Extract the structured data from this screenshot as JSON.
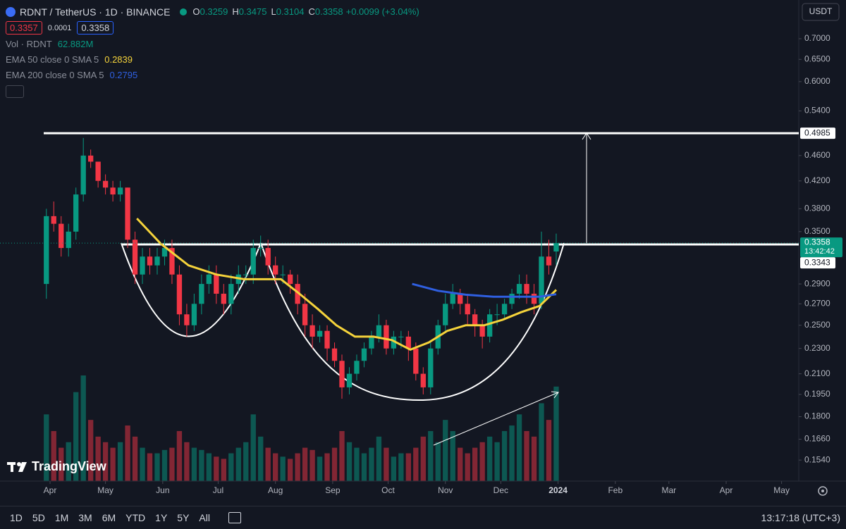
{
  "header": {
    "symbol": "RDNT / TetherUS · 1D · BINANCE",
    "ohlc": [
      {
        "key": "O",
        "value": 0.3259
      },
      {
        "key": "H",
        "value": 0.3475
      },
      {
        "key": "L",
        "value": 0.3104
      },
      {
        "key": "C",
        "value": 0.3358
      }
    ],
    "change": "+0.0099 (+3.04%)",
    "sell": 0.3357,
    "spread": 0.0001,
    "buy": 0.3358
  },
  "currency": "USDT",
  "watermark": "TradingView",
  "toolbar": {
    "ranges": [
      "1D",
      "5D",
      "1M",
      "3M",
      "6M",
      "YTD",
      "1Y",
      "5Y",
      "All"
    ],
    "clock": "13:17:18 (UTC+3)"
  },
  "chart_data": {
    "type": "candlestick",
    "log_scale": true,
    "grid": false,
    "up_color": "#089981",
    "down_color": "#f23645",
    "xlim": [
      -27.1,
      405.3
    ],
    "xticks": [
      {
        "value": 0,
        "label": "Apr"
      },
      {
        "value": 30,
        "label": "May"
      },
      {
        "value": 61,
        "label": "Jun"
      },
      {
        "value": 91,
        "label": "Jul"
      },
      {
        "value": 122,
        "label": "Aug"
      },
      {
        "value": 153,
        "label": "Sep"
      },
      {
        "value": 183,
        "label": "Oct"
      },
      {
        "value": 214,
        "label": "Nov"
      },
      {
        "value": 244,
        "label": "Dec"
      },
      {
        "value": 275,
        "label": "2024"
      },
      {
        "value": 306,
        "label": "Feb"
      },
      {
        "value": 335,
        "label": "Mar"
      },
      {
        "value": 366,
        "label": "Apr"
      },
      {
        "value": 396,
        "label": "May"
      }
    ],
    "ylim": [
      0.1428,
      0.8045
    ],
    "yticks": [
      {
        "value": 0.7,
        "label": "0.7000"
      },
      {
        "value": 0.65,
        "label": "0.6500"
      },
      {
        "value": 0.6,
        "label": "0.6000"
      },
      {
        "value": 0.54,
        "label": "0.5400"
      },
      {
        "value": 0.46,
        "label": "0.4600"
      },
      {
        "value": 0.42,
        "label": "0.4200"
      },
      {
        "value": 0.38,
        "label": "0.3800"
      },
      {
        "value": 0.35,
        "label": "0.3500"
      },
      {
        "value": 0.29,
        "label": "0.2900"
      },
      {
        "value": 0.27,
        "label": "0.2700"
      },
      {
        "value": 0.25,
        "label": "0.2500"
      },
      {
        "value": 0.23,
        "label": "0.2300"
      },
      {
        "value": 0.21,
        "label": "0.2100"
      },
      {
        "value": 0.195,
        "label": "0.1950"
      },
      {
        "value": 0.18,
        "label": "0.1800"
      },
      {
        "value": 0.166,
        "label": "0.1660"
      },
      {
        "value": 0.154,
        "label": "0.1540"
      }
    ],
    "x": [
      -2,
      2,
      6,
      10,
      14,
      18,
      22,
      26,
      30,
      34,
      38,
      42,
      46,
      50,
      54,
      58,
      62,
      66,
      70,
      74,
      78,
      82,
      86,
      90,
      94,
      98,
      102,
      106,
      110,
      114,
      118,
      122,
      126,
      130,
      134,
      138,
      142,
      146,
      150,
      154,
      158,
      162,
      166,
      170,
      174,
      178,
      182,
      186,
      190,
      194,
      198,
      202,
      206,
      210,
      214,
      218,
      222,
      226,
      230,
      234,
      238,
      242,
      246,
      250,
      254,
      258,
      262,
      266,
      270,
      274
    ],
    "open": [
      0.29,
      0.37,
      0.36,
      0.33,
      0.35,
      0.4,
      0.46,
      0.45,
      0.42,
      0.41,
      0.4,
      0.41,
      0.34,
      0.3,
      0.32,
      0.31,
      0.32,
      0.33,
      0.3,
      0.26,
      0.25,
      0.27,
      0.29,
      0.3,
      0.28,
      0.27,
      0.29,
      0.3,
      0.3,
      0.33,
      0.33,
      0.31,
      0.3,
      0.3,
      0.29,
      0.27,
      0.25,
      0.24,
      0.245,
      0.23,
      0.22,
      0.2,
      0.21,
      0.22,
      0.23,
      0.24,
      0.25,
      0.23,
      0.24,
      0.24,
      0.23,
      0.21,
      0.2,
      0.23,
      0.25,
      0.27,
      0.28,
      0.27,
      0.26,
      0.25,
      0.24,
      0.26,
      0.26,
      0.27,
      0.28,
      0.29,
      0.28,
      0.27,
      0.32,
      0.3259
    ],
    "high": [
      0.38,
      0.39,
      0.37,
      0.36,
      0.41,
      0.49,
      0.47,
      0.45,
      0.43,
      0.42,
      0.42,
      0.41,
      0.35,
      0.33,
      0.33,
      0.33,
      0.34,
      0.34,
      0.31,
      0.27,
      0.28,
      0.3,
      0.31,
      0.31,
      0.29,
      0.3,
      0.31,
      0.31,
      0.34,
      0.345,
      0.34,
      0.32,
      0.31,
      0.305,
      0.3,
      0.28,
      0.26,
      0.25,
      0.25,
      0.235,
      0.225,
      0.215,
      0.225,
      0.235,
      0.245,
      0.26,
      0.255,
      0.245,
      0.245,
      0.245,
      0.235,
      0.215,
      0.235,
      0.255,
      0.28,
      0.29,
      0.285,
      0.28,
      0.265,
      0.255,
      0.265,
      0.27,
      0.275,
      0.285,
      0.3,
      0.3,
      0.29,
      0.35,
      0.34,
      0.3475
    ],
    "low": [
      0.275,
      0.35,
      0.32,
      0.32,
      0.34,
      0.39,
      0.44,
      0.41,
      0.4,
      0.39,
      0.39,
      0.33,
      0.29,
      0.29,
      0.3,
      0.3,
      0.31,
      0.29,
      0.25,
      0.24,
      0.245,
      0.26,
      0.28,
      0.27,
      0.26,
      0.26,
      0.28,
      0.29,
      0.29,
      0.32,
      0.3,
      0.29,
      0.29,
      0.28,
      0.26,
      0.24,
      0.23,
      0.235,
      0.22,
      0.215,
      0.192,
      0.195,
      0.205,
      0.215,
      0.225,
      0.235,
      0.225,
      0.225,
      0.23,
      0.22,
      0.205,
      0.195,
      0.195,
      0.225,
      0.245,
      0.265,
      0.26,
      0.25,
      0.24,
      0.23,
      0.235,
      0.25,
      0.255,
      0.265,
      0.275,
      0.27,
      0.26,
      0.265,
      0.3,
      0.3104
    ],
    "close": [
      0.37,
      0.36,
      0.33,
      0.35,
      0.4,
      0.46,
      0.45,
      0.42,
      0.41,
      0.4,
      0.41,
      0.34,
      0.3,
      0.32,
      0.31,
      0.32,
      0.33,
      0.3,
      0.26,
      0.25,
      0.27,
      0.29,
      0.3,
      0.28,
      0.27,
      0.29,
      0.3,
      0.3,
      0.33,
      0.33,
      0.31,
      0.3,
      0.3,
      0.29,
      0.27,
      0.25,
      0.24,
      0.245,
      0.23,
      0.22,
      0.2,
      0.21,
      0.22,
      0.23,
      0.24,
      0.25,
      0.23,
      0.24,
      0.24,
      0.23,
      0.21,
      0.2,
      0.23,
      0.25,
      0.27,
      0.28,
      0.27,
      0.26,
      0.25,
      0.24,
      0.26,
      0.26,
      0.27,
      0.28,
      0.29,
      0.28,
      0.27,
      0.32,
      0.31,
      0.3358
    ],
    "volume": {
      "name": "Vol · RDNT",
      "last": "62.882M",
      "values": [
        60,
        45,
        30,
        35,
        80,
        95,
        55,
        40,
        35,
        30,
        35,
        50,
        40,
        30,
        25,
        25,
        28,
        30,
        45,
        35,
        30,
        28,
        25,
        22,
        20,
        25,
        30,
        35,
        60,
        40,
        30,
        25,
        22,
        20,
        25,
        30,
        28,
        22,
        25,
        30,
        45,
        35,
        30,
        25,
        30,
        40,
        30,
        22,
        25,
        25,
        30,
        40,
        45,
        35,
        55,
        45,
        30,
        25,
        30,
        35,
        40,
        35,
        45,
        50,
        60,
        45,
        40,
        70,
        55,
        85
      ]
    },
    "series": [
      {
        "name": "EMA 50 close 0 SMA 5",
        "color": "#f5d33b",
        "last": 0.2839,
        "x": [
          47,
          60,
          75,
          90,
          105,
          115,
          125,
          135,
          145,
          155,
          165,
          175,
          185,
          195,
          205,
          215,
          225,
          235,
          245,
          255,
          265,
          274
        ],
        "values": [
          0.367,
          0.335,
          0.31,
          0.3,
          0.295,
          0.295,
          0.295,
          0.28,
          0.265,
          0.25,
          0.24,
          0.24,
          0.237,
          0.229,
          0.235,
          0.245,
          0.25,
          0.25,
          0.255,
          0.262,
          0.268,
          0.2839
        ]
      },
      {
        "name": "EMA 200 close 0 SMA 5",
        "color": "#2f5fe0",
        "last": 0.2795,
        "x": [
          196,
          210,
          225,
          240,
          255,
          265,
          274
        ],
        "values": [
          0.29,
          0.283,
          0.279,
          0.277,
          0.277,
          0.277,
          0.2795
        ]
      }
    ],
    "levels": [
      0.4985,
      0.3343
    ],
    "last_price": 0.3358,
    "countdown": "13:42:42"
  }
}
